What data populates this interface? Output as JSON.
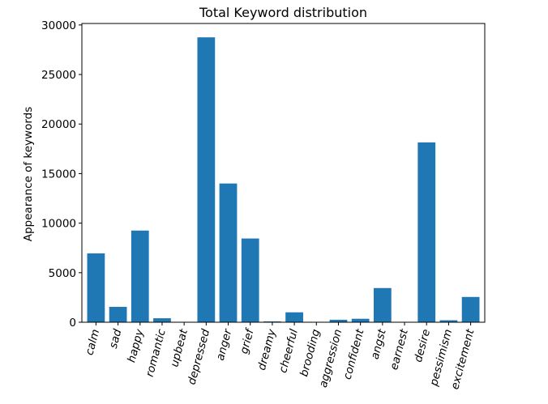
{
  "chart_data": {
    "type": "bar",
    "title": "Total Keyword distribution",
    "xlabel": "",
    "ylabel": "Appearance of keywords",
    "categories": [
      "calm",
      "sad",
      "happy",
      "romantic",
      "upbeat",
      "depressed",
      "anger",
      "grief",
      "dreamy",
      "cheerful",
      "brooding",
      "aggression",
      "confident",
      "angst",
      "earnest",
      "desire",
      "pessimism",
      "excitement"
    ],
    "values": [
      6950,
      1550,
      9250,
      400,
      0,
      28750,
      14000,
      8450,
      80,
      1000,
      0,
      250,
      350,
      3450,
      0,
      18150,
      200,
      2550
    ],
    "yticks": [
      0,
      5000,
      10000,
      15000,
      20000,
      25000,
      30000
    ],
    "ylim": [
      0,
      30150
    ],
    "tick_label_rotation_deg": -75,
    "grid": false,
    "legend": "none",
    "bar_color": "#1f77b4"
  }
}
